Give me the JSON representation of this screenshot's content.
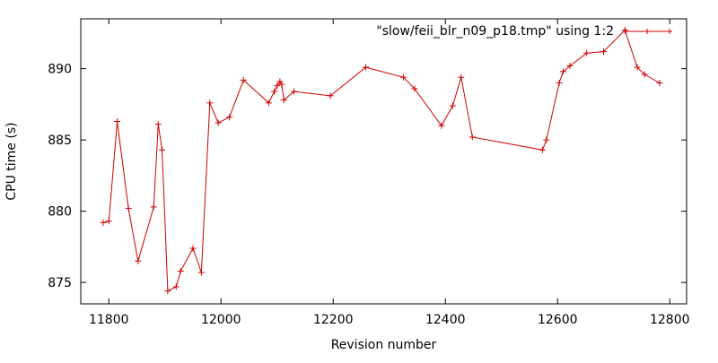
{
  "chart_data": {
    "type": "line",
    "xlabel": "Revision number",
    "ylabel": "CPU time (s)",
    "xlim": [
      11750,
      12830
    ],
    "ylim": [
      873.5,
      893.5
    ],
    "x_ticks": [
      11800,
      12000,
      12200,
      12400,
      12600,
      12800
    ],
    "y_ticks": [
      875,
      880,
      885,
      890
    ],
    "grid": false,
    "legend_position": "top-right",
    "series": [
      {
        "name": "\"slow/feii_blr_n09_p18.tmp\" using 1:2",
        "color": "#cc0000",
        "marker": "plus",
        "x": [
          11790,
          11800,
          11815,
          11835,
          11852,
          11880,
          11888,
          11895,
          11905,
          11920,
          11928,
          11950,
          11965,
          11980,
          11995,
          12015,
          12040,
          12085,
          12095,
          12100,
          12105,
          12108,
          12112,
          12130,
          12195,
          12258,
          12325,
          12345,
          12393,
          12413,
          12428,
          12448,
          12573,
          12580,
          12603,
          12610,
          12622,
          12652,
          12682,
          12720,
          12742,
          12755,
          12782
        ],
        "y": [
          879.2,
          879.3,
          886.3,
          880.2,
          876.5,
          880.3,
          886.1,
          884.3,
          874.4,
          874.7,
          875.8,
          877.4,
          875.7,
          887.6,
          886.2,
          886.6,
          889.2,
          887.6,
          888.4,
          888.8,
          889.1,
          888.9,
          887.8,
          888.4,
          888.1,
          890.1,
          889.4,
          888.6,
          886.0,
          887.4,
          889.4,
          885.2,
          884.3,
          885.0,
          889.0,
          889.8,
          890.2,
          891.1,
          891.2,
          892.7,
          890.1,
          889.6,
          889.0
        ]
      }
    ]
  }
}
